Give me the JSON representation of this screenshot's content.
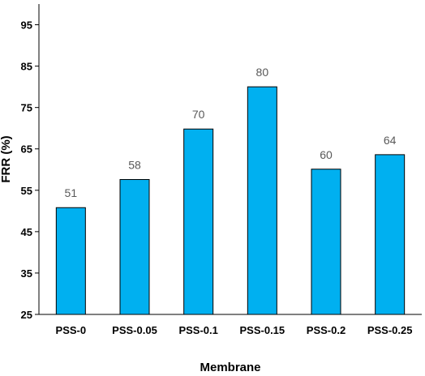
{
  "chart_data": {
    "type": "bar",
    "title": "",
    "xlabel": "Membrane",
    "ylabel": "FRR (%)",
    "categories": [
      "PSS-0",
      "PSS-0.05",
      "PSS-0.1",
      "PSS-0.15",
      "PSS-0.2",
      "PSS-0.25"
    ],
    "values": [
      50.8,
      57.6,
      69.8,
      80.0,
      60.1,
      63.6
    ],
    "data_labels": [
      "51",
      "58",
      "70",
      "80",
      "60",
      "64"
    ],
    "ylim": [
      25,
      100
    ],
    "yticks": [
      "25",
      "35",
      "45",
      "55",
      "65",
      "75",
      "85",
      "95"
    ],
    "grid": false,
    "legend": "none",
    "colors": {
      "bar_fill": "#00B0F0",
      "bar_stroke": "#000000",
      "axis": "#000000",
      "data_label": "#595959"
    }
  }
}
